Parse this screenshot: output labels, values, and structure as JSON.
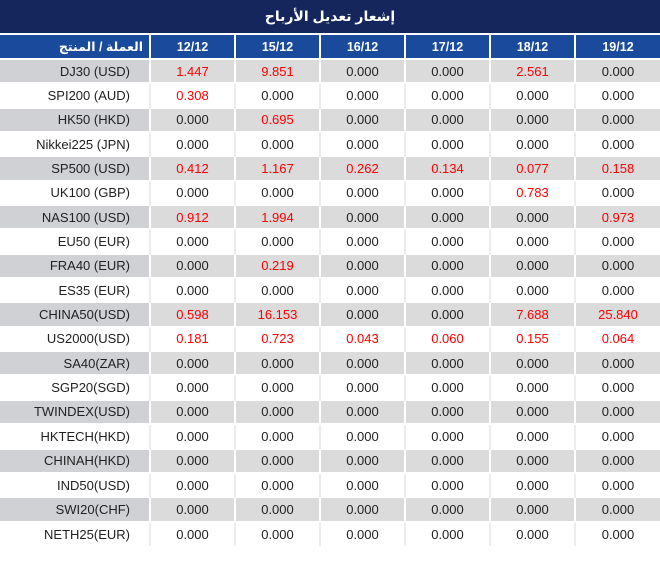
{
  "title": "إشعار تعديل الأرباح",
  "colors": {
    "title_bg": "#14265c",
    "header_bg": "#1a4a9c",
    "row_gray": "#dbdbdb",
    "label_gray": "#cfd1d5",
    "red": "#ff0000",
    "text": "#212121"
  },
  "table": {
    "columns": [
      "العملة / المنتج",
      "12/12",
      "15/12",
      "16/12",
      "17/12",
      "18/12",
      "19/12"
    ],
    "rows": [
      {
        "label": "DJ30 (USD)",
        "values": [
          "1.447",
          "9.851",
          "0.000",
          "0.000",
          "2.561",
          "0.000"
        ],
        "red": [
          true,
          true,
          false,
          false,
          true,
          false
        ]
      },
      {
        "label": "SPI200 (AUD)",
        "values": [
          "0.308",
          "0.000",
          "0.000",
          "0.000",
          "0.000",
          "0.000"
        ],
        "red": [
          true,
          false,
          false,
          false,
          false,
          false
        ]
      },
      {
        "label": "HK50 (HKD)",
        "values": [
          "0.000",
          "0.695",
          "0.000",
          "0.000",
          "0.000",
          "0.000"
        ],
        "red": [
          false,
          true,
          false,
          false,
          false,
          false
        ]
      },
      {
        "label": "Nikkei225 (JPN)",
        "values": [
          "0.000",
          "0.000",
          "0.000",
          "0.000",
          "0.000",
          "0.000"
        ],
        "red": [
          false,
          false,
          false,
          false,
          false,
          false
        ]
      },
      {
        "label": "SP500 (USD)",
        "values": [
          "0.412",
          "1.167",
          "0.262",
          "0.134",
          "0.077",
          "0.158"
        ],
        "red": [
          true,
          true,
          true,
          true,
          true,
          true
        ]
      },
      {
        "label": "UK100 (GBP)",
        "values": [
          "0.000",
          "0.000",
          "0.000",
          "0.000",
          "0.783",
          "0.000"
        ],
        "red": [
          false,
          false,
          false,
          false,
          true,
          false
        ]
      },
      {
        "label": "NAS100 (USD)",
        "values": [
          "0.912",
          "1.994",
          "0.000",
          "0.000",
          "0.000",
          "0.973"
        ],
        "red": [
          true,
          true,
          false,
          false,
          false,
          true
        ]
      },
      {
        "label": "EU50 (EUR)",
        "values": [
          "0.000",
          "0.000",
          "0.000",
          "0.000",
          "0.000",
          "0.000"
        ],
        "red": [
          false,
          false,
          false,
          false,
          false,
          false
        ]
      },
      {
        "label": "FRA40 (EUR)",
        "values": [
          "0.000",
          "0.219",
          "0.000",
          "0.000",
          "0.000",
          "0.000"
        ],
        "red": [
          false,
          true,
          false,
          false,
          false,
          false
        ]
      },
      {
        "label": "ES35 (EUR)",
        "values": [
          "0.000",
          "0.000",
          "0.000",
          "0.000",
          "0.000",
          "0.000"
        ],
        "red": [
          false,
          false,
          false,
          false,
          false,
          false
        ]
      },
      {
        "label": "CHINA50(USD)",
        "values": [
          "0.598",
          "16.153",
          "0.000",
          "0.000",
          "7.688",
          "25.840"
        ],
        "red": [
          true,
          true,
          false,
          false,
          true,
          true
        ]
      },
      {
        "label": "US2000(USD)",
        "values": [
          "0.181",
          "0.723",
          "0.043",
          "0.060",
          "0.155",
          "0.064"
        ],
        "red": [
          true,
          true,
          true,
          true,
          true,
          true
        ]
      },
      {
        "label": "SA40(ZAR)",
        "values": [
          "0.000",
          "0.000",
          "0.000",
          "0.000",
          "0.000",
          "0.000"
        ],
        "red": [
          false,
          false,
          false,
          false,
          false,
          false
        ]
      },
      {
        "label": "SGP20(SGD)",
        "values": [
          "0.000",
          "0.000",
          "0.000",
          "0.000",
          "0.000",
          "0.000"
        ],
        "red": [
          false,
          false,
          false,
          false,
          false,
          false
        ]
      },
      {
        "label": "TWINDEX(USD)",
        "values": [
          "0.000",
          "0.000",
          "0.000",
          "0.000",
          "0.000",
          "0.000"
        ],
        "red": [
          false,
          false,
          false,
          false,
          false,
          false
        ]
      },
      {
        "label": "HKTECH(HKD)",
        "values": [
          "0.000",
          "0.000",
          "0.000",
          "0.000",
          "0.000",
          "0.000"
        ],
        "red": [
          false,
          false,
          false,
          false,
          false,
          false
        ]
      },
      {
        "label": "CHINAH(HKD)",
        "values": [
          "0.000",
          "0.000",
          "0.000",
          "0.000",
          "0.000",
          "0.000"
        ],
        "red": [
          false,
          false,
          false,
          false,
          false,
          false
        ]
      },
      {
        "label": "IND50(USD)",
        "values": [
          "0.000",
          "0.000",
          "0.000",
          "0.000",
          "0.000",
          "0.000"
        ],
        "red": [
          false,
          false,
          false,
          false,
          false,
          false
        ]
      },
      {
        "label": "SWI20(CHF)",
        "values": [
          "0.000",
          "0.000",
          "0.000",
          "0.000",
          "0.000",
          "0.000"
        ],
        "red": [
          false,
          false,
          false,
          false,
          false,
          false
        ]
      },
      {
        "label": "NETH25(EUR)",
        "values": [
          "0.000",
          "0.000",
          "0.000",
          "0.000",
          "0.000",
          "0.000"
        ],
        "red": [
          false,
          false,
          false,
          false,
          false,
          false
        ]
      }
    ]
  }
}
